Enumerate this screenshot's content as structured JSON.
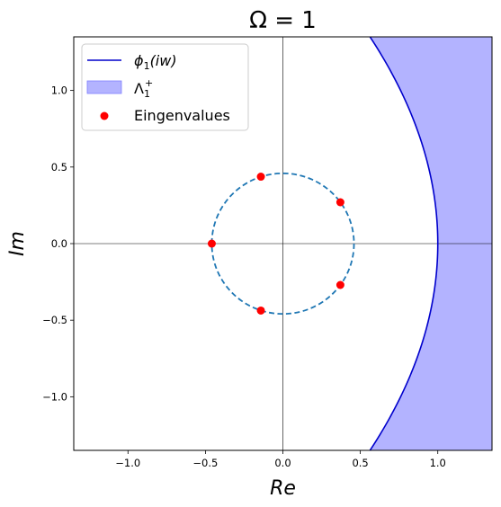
{
  "chart_data": {
    "type": "scatter",
    "title": "Ω = 1",
    "xlabel": "Re",
    "ylabel": "Im",
    "xlim": [
      -1.35,
      1.35
    ],
    "ylim": [
      -1.35,
      1.35
    ],
    "xticks": [
      -1.0,
      -0.5,
      0.0,
      0.5,
      1.0
    ],
    "yticks": [
      -1.0,
      -0.5,
      0.0,
      0.5,
      1.0
    ],
    "xtick_labels": [
      "−1.0",
      "−0.5",
      "0.0",
      "0.5",
      "1.0"
    ],
    "ytick_labels": [
      "−1.0",
      "−0.5",
      "0.0",
      "0.5",
      "1.0"
    ],
    "grid": false,
    "legend_position": "top-left",
    "zero_lines": true,
    "curve": {
      "name": "ϕ1(iw)",
      "name_base": "ϕ",
      "name_sub": "1",
      "name_arg": "(iw)",
      "color": "#0000cc",
      "vertex_re": 1.0,
      "k": 0.24
    },
    "region": {
      "name": "Λ1+",
      "name_base": "Λ",
      "name_sub": "1",
      "name_sup": "+",
      "color": "#b3b3ff"
    },
    "circle": {
      "radius": 0.459,
      "color": "#1f77b4",
      "style": "dashed"
    },
    "eigenvalues": {
      "name": "Eingenvalues",
      "color": "#ff0000",
      "points": [
        [
          -0.459,
          0.0
        ],
        [
          -0.142,
          0.437
        ],
        [
          -0.142,
          -0.437
        ],
        [
          0.371,
          0.27
        ],
        [
          0.371,
          -0.27
        ]
      ]
    }
  }
}
